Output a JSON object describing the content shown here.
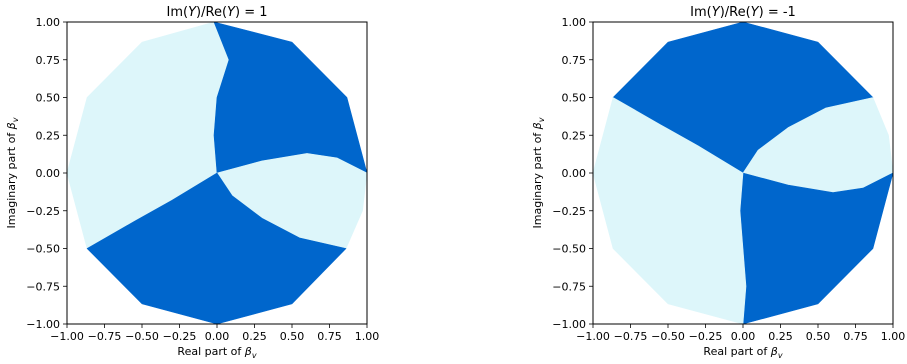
{
  "chart_data": [
    {
      "type": "region-map",
      "title": "Im(Y)/Re(Y) = 1",
      "xlabel": "Real part of β",
      "xlabel_sub": "v",
      "ylabel": "Imaginary part of β",
      "ylabel_sub": "v",
      "xlim": [
        -1.0,
        1.0
      ],
      "ylim": [
        -1.0,
        1.0
      ],
      "xticks": [
        "−1.00",
        "−0.75",
        "−0.50",
        "−0.25",
        "0.00",
        "0.25",
        "0.50",
        "0.75",
        "1.00"
      ],
      "yticks": [
        "−1.00",
        "−0.75",
        "−0.50",
        "−0.25",
        "0.00",
        "0.25",
        "0.50",
        "0.75",
        "1.00"
      ],
      "colors": {
        "dark": "#0066cc",
        "light": "#ddf6fa"
      },
      "regions": [
        {
          "shade": "light",
          "boundary": [
            [
              0,
              0
            ],
            [
              -0.02,
              0.25
            ],
            [
              0,
              0.5
            ],
            [
              0.08,
              0.75
            ],
            [
              -0.02,
              1.0
            ],
            [
              -0.5,
              0.866
            ],
            [
              -0.866,
              0.5
            ],
            [
              -1.0,
              0.0
            ],
            [
              -0.866,
              -0.5
            ],
            [
              -0.55,
              -0.32
            ],
            [
              -0.3,
              -0.18
            ],
            [
              0,
              0
            ]
          ]
        },
        {
          "shade": "dark",
          "boundary": [
            [
              0,
              0
            ],
            [
              -0.02,
              0.25
            ],
            [
              0,
              0.5
            ],
            [
              0.08,
              0.75
            ],
            [
              -0.02,
              1.0
            ],
            [
              0.5,
              0.866
            ],
            [
              0.866,
              0.5
            ],
            [
              1.0,
              0.0
            ],
            [
              0.8,
              0.1
            ],
            [
              0.6,
              0.13
            ],
            [
              0.3,
              0.08
            ],
            [
              0,
              0
            ]
          ]
        },
        {
          "shade": "light",
          "boundary": [
            [
              0,
              0
            ],
            [
              0.3,
              0.08
            ],
            [
              0.6,
              0.13
            ],
            [
              0.8,
              0.1
            ],
            [
              1.0,
              0.0
            ],
            [
              0.97,
              -0.25
            ],
            [
              0.86,
              -0.5
            ],
            [
              0.55,
              -0.43
            ],
            [
              0.3,
              -0.3
            ],
            [
              0.1,
              -0.15
            ],
            [
              0,
              0
            ]
          ]
        },
        {
          "shade": "dark",
          "boundary": [
            [
              0,
              0
            ],
            [
              0.1,
              -0.15
            ],
            [
              0.3,
              -0.3
            ],
            [
              0.55,
              -0.43
            ],
            [
              0.86,
              -0.5
            ],
            [
              0.5,
              -0.866
            ],
            [
              0,
              -1.0
            ],
            [
              -0.5,
              -0.866
            ],
            [
              -0.866,
              -0.5
            ],
            [
              -0.55,
              -0.32
            ],
            [
              -0.3,
              -0.18
            ],
            [
              0,
              0
            ]
          ]
        }
      ]
    },
    {
      "type": "region-map",
      "title": "Im(Y)/Re(Y) = -1",
      "xlabel": "Real part of β",
      "xlabel_sub": "v",
      "ylabel": "Imaginary part of β",
      "ylabel_sub": "v",
      "xlim": [
        -1.0,
        1.0
      ],
      "ylim": [
        -1.0,
        1.0
      ],
      "xticks": [
        "−1.00",
        "−0.75",
        "−0.50",
        "−0.25",
        "0.00",
        "0.25",
        "0.50",
        "0.75",
        "1.00"
      ],
      "yticks": [
        "−1.00",
        "−0.75",
        "−0.50",
        "−0.25",
        "0.00",
        "0.25",
        "0.50",
        "0.75",
        "1.00"
      ],
      "colors": {
        "dark": "#0066cc",
        "light": "#ddf6fa"
      },
      "regions": [
        {
          "shade": "dark",
          "boundary": [
            [
              0,
              0
            ],
            [
              -0.3,
              0.18
            ],
            [
              -0.55,
              0.32
            ],
            [
              -0.866,
              0.5
            ],
            [
              -0.5,
              0.866
            ],
            [
              0,
              1.0
            ],
            [
              0.5,
              0.866
            ],
            [
              0.866,
              0.5
            ],
            [
              0.55,
              0.43
            ],
            [
              0.3,
              0.3
            ],
            [
              0.1,
              0.15
            ],
            [
              0,
              0
            ]
          ]
        },
        {
          "shade": "light",
          "boundary": [
            [
              0,
              0
            ],
            [
              0.1,
              0.15
            ],
            [
              0.3,
              0.3
            ],
            [
              0.55,
              0.43
            ],
            [
              0.866,
              0.5
            ],
            [
              0.97,
              0.25
            ],
            [
              1.0,
              0.0
            ],
            [
              0.8,
              -0.1
            ],
            [
              0.6,
              -0.13
            ],
            [
              0.3,
              -0.08
            ],
            [
              0,
              0
            ]
          ]
        },
        {
          "shade": "dark",
          "boundary": [
            [
              0,
              0
            ],
            [
              0.3,
              -0.08
            ],
            [
              0.6,
              -0.13
            ],
            [
              0.8,
              -0.1
            ],
            [
              1.0,
              0.0
            ],
            [
              0.866,
              -0.5
            ],
            [
              0.5,
              -0.866
            ],
            [
              0,
              -1.0
            ],
            [
              0.02,
              -0.75
            ],
            [
              0.0,
              -0.5
            ],
            [
              -0.02,
              -0.25
            ],
            [
              0,
              0
            ]
          ]
        },
        {
          "shade": "light",
          "boundary": [
            [
              0,
              0
            ],
            [
              -0.02,
              -0.25
            ],
            [
              0.0,
              -0.5
            ],
            [
              0.02,
              -0.75
            ],
            [
              0,
              -1.0
            ],
            [
              -0.5,
              -0.866
            ],
            [
              -0.866,
              -0.5
            ],
            [
              -1.0,
              0.0
            ],
            [
              -0.866,
              0.5
            ],
            [
              -0.55,
              0.32
            ],
            [
              -0.3,
              0.18
            ],
            [
              0,
              0
            ]
          ]
        }
      ]
    }
  ]
}
